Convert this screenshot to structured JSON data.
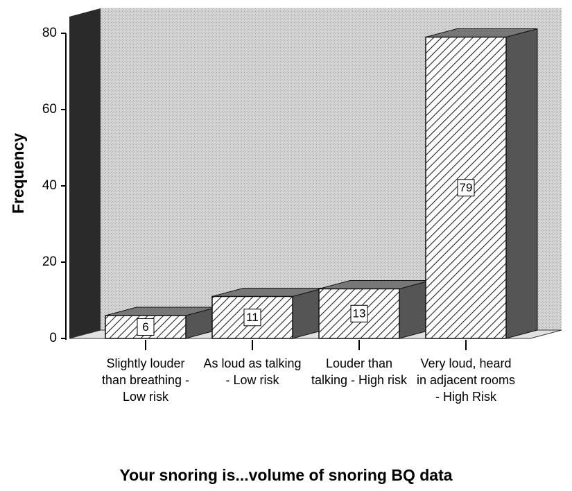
{
  "chart_data": {
    "type": "bar",
    "title": "Your snoring is...volume of snoring BQ data",
    "y_label": "Frequency",
    "categories": [
      "Slightly louder than breathing -Low risk",
      "As loud as talking - Low risk",
      "Louder than talking - High risk",
      "Very loud, heard in adjacent rooms - High Risk"
    ],
    "values": [
      6,
      11,
      13,
      79
    ],
    "ylim": [
      0,
      80
    ],
    "yticks": [
      0,
      20,
      40,
      60,
      80
    ]
  }
}
